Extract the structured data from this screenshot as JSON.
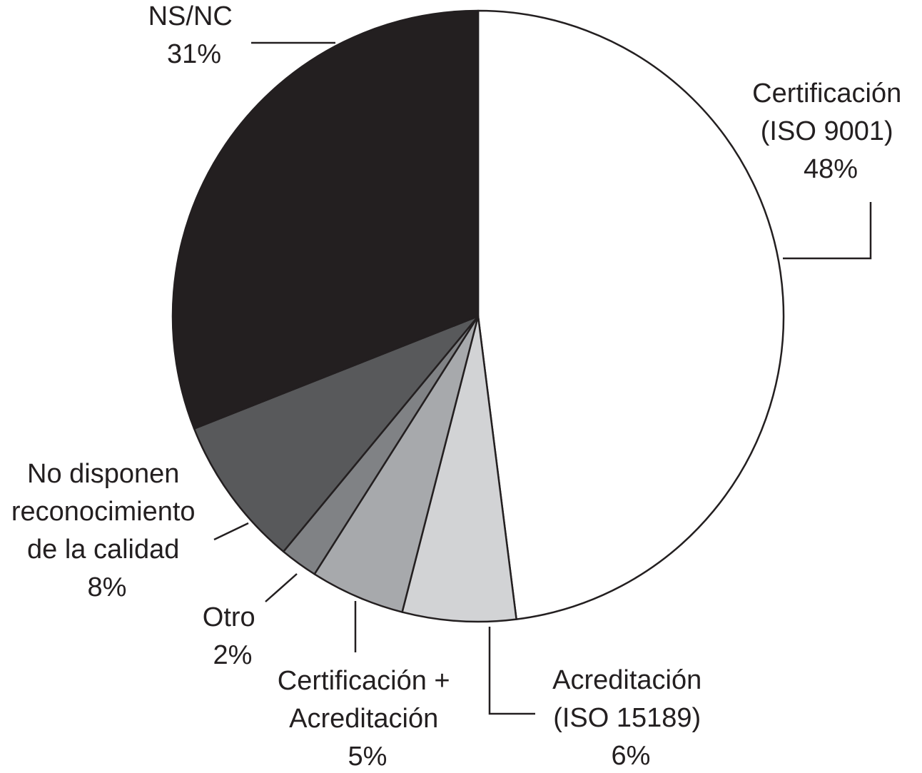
{
  "chart_data": {
    "type": "pie",
    "slices": [
      {
        "label": [
          "Certificación",
          "(ISO 9001)",
          "48%"
        ],
        "value": 48,
        "color": "#ffffff"
      },
      {
        "label": [
          "Acreditación",
          "(ISO 15189)",
          "6%"
        ],
        "value": 6,
        "color": "#d2d3d5"
      },
      {
        "label": [
          "Certificación +",
          "Acreditación",
          "5%"
        ],
        "value": 5,
        "color": "#a7a9ac"
      },
      {
        "label": [
          "Otro",
          "2%"
        ],
        "value": 2,
        "color": "#808285"
      },
      {
        "label": [
          "No disponen",
          "reconocimiento",
          "de la calidad",
          "8%"
        ],
        "value": 8,
        "color": "#58595b"
      },
      {
        "label": [
          "NS/NC",
          "31%"
        ],
        "value": 31,
        "color": "#231f20"
      }
    ],
    "start_angle": "12 o'clock",
    "direction": "clockwise",
    "legend": "none"
  }
}
